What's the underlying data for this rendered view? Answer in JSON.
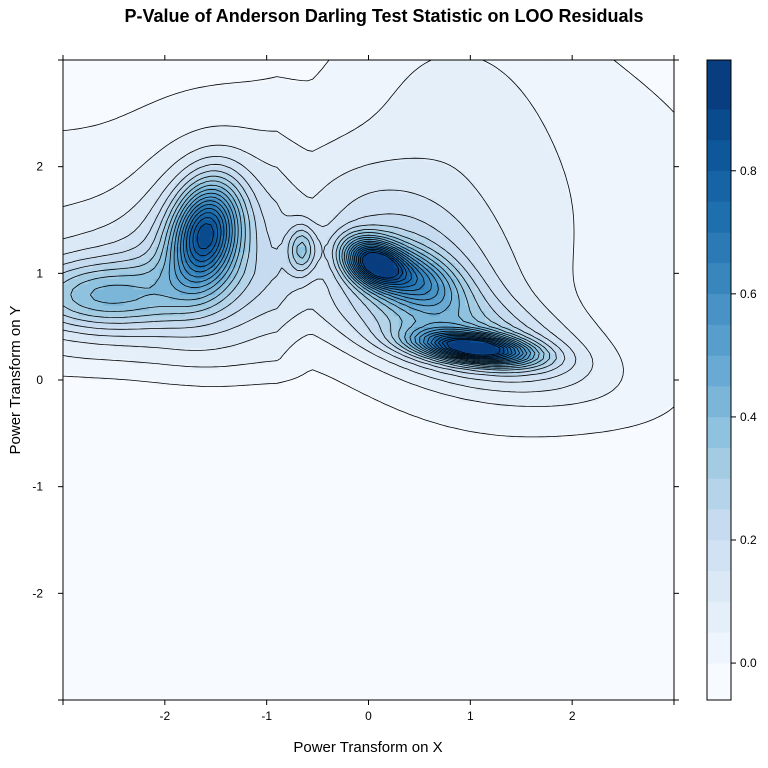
{
  "chart_data": {
    "type": "heatmap",
    "subtype": "filled-contour",
    "title": "P-Value of Anderson Darling Test Statistic on LOO Residuals",
    "xlabel": "Power Transform on X",
    "ylabel": "Power Transform on Y",
    "xlim": [
      -3,
      3
    ],
    "ylim": [
      -3,
      3
    ],
    "x_ticks": [
      -2,
      -1,
      0,
      1,
      2
    ],
    "y_ticks": [
      -2,
      -1,
      0,
      1,
      2
    ],
    "x_tick_labels": [
      "-2",
      "-1",
      "0",
      "1",
      "2"
    ],
    "y_tick_labels": [
      "-2",
      "-1",
      "0",
      "1",
      "2"
    ],
    "colorbar": {
      "min": -0.06,
      "max": 0.98,
      "ticks": [
        0.0,
        0.2,
        0.4,
        0.6,
        0.8
      ],
      "tick_labels": [
        "0.0",
        "0.2",
        "0.4",
        "0.6",
        "0.8"
      ],
      "levels": [
        -0.06,
        0.0,
        0.05,
        0.1,
        0.15,
        0.2,
        0.25,
        0.3,
        0.35,
        0.4,
        0.45,
        0.5,
        0.55,
        0.6,
        0.65,
        0.7,
        0.75,
        0.8,
        0.85,
        0.9,
        0.98
      ],
      "colors": [
        "#f7fbff",
        "#eef5fd",
        "#e5eff9",
        "#dbe9f6",
        "#d0e2f3",
        "#c6dbef",
        "#b5d4e9",
        "#a3cce3",
        "#8fc2de",
        "#7bb6d9",
        "#68aad4",
        "#579ecd",
        "#4892c5",
        "#3986bd",
        "#2b7ab5",
        "#1e6fae",
        "#1663a6",
        "#0f579b",
        "#0a4b8e",
        "#083d7f"
      ]
    },
    "peaks": [
      {
        "x": -1.6,
        "y": 1.45,
        "value": 0.85
      },
      {
        "x": -0.65,
        "y": 1.22,
        "value": 0.25
      },
      {
        "x": 0.05,
        "y": 1.1,
        "value": 0.9
      },
      {
        "x": 1.05,
        "y": 0.3,
        "value": 0.9
      },
      {
        "x": -2.6,
        "y": 0.78,
        "value": 0.3
      }
    ],
    "grid": false,
    "legend": "right colorbar"
  }
}
